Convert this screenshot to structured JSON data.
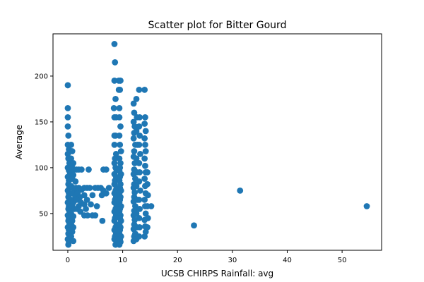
{
  "chart_data": {
    "type": "scatter",
    "title": "Scatter plot for Bitter Gourd",
    "xlabel": "UCSB CHIRPS Rainfall: avg",
    "ylabel": "Average",
    "xlim": [
      -2.7,
      57.2
    ],
    "ylim": [
      9.9,
      246.1
    ],
    "xticks": [
      0,
      10,
      20,
      30,
      40,
      50
    ],
    "yticks": [
      50,
      100,
      150,
      200
    ],
    "grid": false,
    "marker_color": "#1f77b4",
    "series": [
      {
        "points": [
          [
            0,
            190
          ],
          [
            0,
            165
          ],
          [
            0,
            155
          ],
          [
            0,
            145
          ],
          [
            0.1,
            135
          ],
          [
            0,
            125
          ],
          [
            0.2,
            120
          ],
          [
            0,
            115
          ],
          [
            0.1,
            110
          ],
          [
            0.3,
            105
          ],
          [
            0,
            100
          ],
          [
            0.2,
            97
          ],
          [
            0.4,
            93
          ],
          [
            0,
            90
          ],
          [
            0.2,
            86
          ],
          [
            0.1,
            82
          ],
          [
            0.3,
            78
          ],
          [
            0,
            75
          ],
          [
            0.2,
            72
          ],
          [
            0.1,
            68
          ],
          [
            0.3,
            65
          ],
          [
            0,
            62
          ],
          [
            0.2,
            58
          ],
          [
            0.1,
            55
          ],
          [
            0.3,
            52
          ],
          [
            0,
            48
          ],
          [
            0.2,
            45
          ],
          [
            0.1,
            42
          ],
          [
            0.3,
            38
          ],
          [
            0,
            35
          ],
          [
            0.2,
            32
          ],
          [
            0.1,
            28
          ],
          [
            0.3,
            25
          ],
          [
            0,
            22
          ],
          [
            0.2,
            19
          ],
          [
            0.1,
            16
          ],
          [
            0.6,
            125
          ],
          [
            0.8,
            118
          ],
          [
            0.6,
            110
          ],
          [
            1.0,
            105
          ],
          [
            0.8,
            100
          ],
          [
            1.2,
            98
          ],
          [
            0.6,
            95
          ],
          [
            1.0,
            92
          ],
          [
            0.8,
            88
          ],
          [
            1.4,
            85
          ],
          [
            0.6,
            80
          ],
          [
            1.0,
            78
          ],
          [
            1.2,
            75
          ],
          [
            0.8,
            72
          ],
          [
            1.4,
            68
          ],
          [
            0.6,
            65
          ],
          [
            1.0,
            62
          ],
          [
            0.8,
            58
          ],
          [
            1.2,
            55
          ],
          [
            0.6,
            50
          ],
          [
            1.0,
            47
          ],
          [
            0.8,
            42
          ],
          [
            0.6,
            38
          ],
          [
            1.0,
            35
          ],
          [
            0.8,
            30
          ],
          [
            0.6,
            25
          ],
          [
            1.0,
            20
          ],
          [
            1.6,
            98
          ],
          [
            2.0,
            98
          ],
          [
            2.5,
            98
          ],
          [
            1.5,
            78
          ],
          [
            2.0,
            78
          ],
          [
            2.5,
            76
          ],
          [
            1.8,
            72
          ],
          [
            2.2,
            68
          ],
          [
            1.6,
            65
          ],
          [
            2.4,
            62
          ],
          [
            2.0,
            58
          ],
          [
            1.7,
            55
          ],
          [
            2.3,
            52
          ],
          [
            3.0,
            78
          ],
          [
            3.5,
            78
          ],
          [
            3.0,
            70
          ],
          [
            3.5,
            65
          ],
          [
            3.0,
            60
          ],
          [
            3.3,
            55
          ],
          [
            3.0,
            48
          ],
          [
            3.6,
            48
          ],
          [
            3.8,
            98
          ],
          [
            4.0,
            78
          ],
          [
            4.5,
            70
          ],
          [
            4.2,
            60
          ],
          [
            4.5,
            48
          ],
          [
            5.0,
            78
          ],
          [
            5.3,
            58
          ],
          [
            5.0,
            48
          ],
          [
            5.5,
            78
          ],
          [
            6.0,
            78
          ],
          [
            6.5,
            75
          ],
          [
            6.2,
            70
          ],
          [
            6.3,
            42
          ],
          [
            6.5,
            98
          ],
          [
            7.0,
            98
          ],
          [
            7.5,
            78
          ],
          [
            7.0,
            72
          ],
          [
            8.5,
            235
          ],
          [
            8.6,
            215
          ],
          [
            8.5,
            195
          ],
          [
            8.7,
            175
          ],
          [
            8.4,
            165
          ],
          [
            8.5,
            155
          ],
          [
            8.8,
            155
          ],
          [
            8.5,
            135
          ],
          [
            8.7,
            135
          ],
          [
            8.5,
            125
          ],
          [
            8.8,
            115
          ],
          [
            8.6,
            110
          ],
          [
            8.5,
            105
          ],
          [
            8.7,
            100
          ],
          [
            8.9,
            97
          ],
          [
            8.5,
            93
          ],
          [
            8.8,
            90
          ],
          [
            8.6,
            86
          ],
          [
            8.5,
            82
          ],
          [
            8.9,
            78
          ],
          [
            8.7,
            75
          ],
          [
            8.5,
            72
          ],
          [
            8.8,
            68
          ],
          [
            8.6,
            65
          ],
          [
            8.5,
            62
          ],
          [
            8.9,
            58
          ],
          [
            8.7,
            55
          ],
          [
            8.5,
            52
          ],
          [
            8.8,
            48
          ],
          [
            8.6,
            45
          ],
          [
            8.5,
            42
          ],
          [
            8.9,
            38
          ],
          [
            8.7,
            35
          ],
          [
            8.5,
            32
          ],
          [
            8.8,
            28
          ],
          [
            8.6,
            25
          ],
          [
            8.5,
            22
          ],
          [
            8.9,
            19
          ],
          [
            8.7,
            16
          ],
          [
            9.3,
            195
          ],
          [
            9.6,
            195
          ],
          [
            9.3,
            185
          ],
          [
            9.5,
            185
          ],
          [
            9.4,
            165
          ],
          [
            9.4,
            155
          ],
          [
            9.6,
            145
          ],
          [
            9.4,
            135
          ],
          [
            9.5,
            125
          ],
          [
            9.7,
            118
          ],
          [
            9.4,
            110
          ],
          [
            9.6,
            105
          ],
          [
            9.5,
            100
          ],
          [
            9.4,
            97
          ],
          [
            9.7,
            93
          ],
          [
            9.5,
            90
          ],
          [
            9.4,
            86
          ],
          [
            9.6,
            82
          ],
          [
            9.5,
            78
          ],
          [
            9.7,
            75
          ],
          [
            9.4,
            72
          ],
          [
            9.6,
            68
          ],
          [
            9.5,
            65
          ],
          [
            9.4,
            62
          ],
          [
            9.7,
            58
          ],
          [
            9.5,
            55
          ],
          [
            9.4,
            52
          ],
          [
            9.6,
            48
          ],
          [
            9.5,
            45
          ],
          [
            9.7,
            42
          ],
          [
            9.4,
            38
          ],
          [
            9.6,
            35
          ],
          [
            9.5,
            32
          ],
          [
            9.4,
            28
          ],
          [
            9.7,
            25
          ],
          [
            9.5,
            22
          ],
          [
            9.6,
            19
          ],
          [
            9.4,
            16
          ],
          [
            12.0,
            170
          ],
          [
            12.1,
            160
          ],
          [
            12.0,
            150
          ],
          [
            12.2,
            145
          ],
          [
            12.1,
            138
          ],
          [
            12.0,
            132
          ],
          [
            12.3,
            125
          ],
          [
            12.1,
            118
          ],
          [
            12.0,
            112
          ],
          [
            12.2,
            105
          ],
          [
            12.1,
            98
          ],
          [
            12.0,
            93
          ],
          [
            12.3,
            88
          ],
          [
            12.1,
            82
          ],
          [
            12.0,
            78
          ],
          [
            12.2,
            73
          ],
          [
            12.1,
            68
          ],
          [
            12.0,
            63
          ],
          [
            12.3,
            58
          ],
          [
            12.1,
            53
          ],
          [
            12.0,
            48
          ],
          [
            12.2,
            43
          ],
          [
            12.1,
            38
          ],
          [
            12.0,
            33
          ],
          [
            12.3,
            28
          ],
          [
            12.1,
            25
          ],
          [
            12.0,
            20
          ],
          [
            12.5,
            175
          ],
          [
            12.6,
            155
          ],
          [
            12.5,
            140
          ],
          [
            12.7,
            125
          ],
          [
            12.5,
            110
          ],
          [
            12.6,
            95
          ],
          [
            12.5,
            80
          ],
          [
            12.7,
            65
          ],
          [
            12.5,
            50
          ],
          [
            12.6,
            35
          ],
          [
            12.5,
            22
          ],
          [
            13.0,
            185
          ],
          [
            13.1,
            155
          ],
          [
            13.0,
            145
          ],
          [
            13.1,
            135
          ],
          [
            13.0,
            125
          ],
          [
            13.2,
            115
          ],
          [
            13.0,
            105
          ],
          [
            13.1,
            95
          ],
          [
            13.0,
            85
          ],
          [
            13.2,
            75
          ],
          [
            13.0,
            65
          ],
          [
            13.1,
            55
          ],
          [
            13.0,
            45
          ],
          [
            13.1,
            35
          ],
          [
            13.0,
            25
          ],
          [
            14.0,
            185
          ],
          [
            14.1,
            155
          ],
          [
            14.0,
            148
          ],
          [
            14.2,
            140
          ],
          [
            14.0,
            132
          ],
          [
            14.1,
            125
          ],
          [
            14.2,
            118
          ],
          [
            14.0,
            110
          ],
          [
            14.1,
            102
          ],
          [
            14.2,
            95
          ],
          [
            14.0,
            88
          ],
          [
            14.1,
            80
          ],
          [
            14.2,
            72
          ],
          [
            14.0,
            65
          ],
          [
            14.1,
            58
          ],
          [
            14.2,
            50
          ],
          [
            14.0,
            43
          ],
          [
            14.1,
            36
          ],
          [
            14.2,
            30
          ],
          [
            14.0,
            25
          ],
          [
            14.5,
            95
          ],
          [
            14.5,
            82
          ],
          [
            14.6,
            70
          ],
          [
            14.5,
            58
          ],
          [
            14.6,
            45
          ],
          [
            14.5,
            35
          ],
          [
            15.2,
            58
          ],
          [
            23.0,
            37
          ],
          [
            31.4,
            75
          ],
          [
            54.5,
            58
          ]
        ]
      }
    ]
  }
}
